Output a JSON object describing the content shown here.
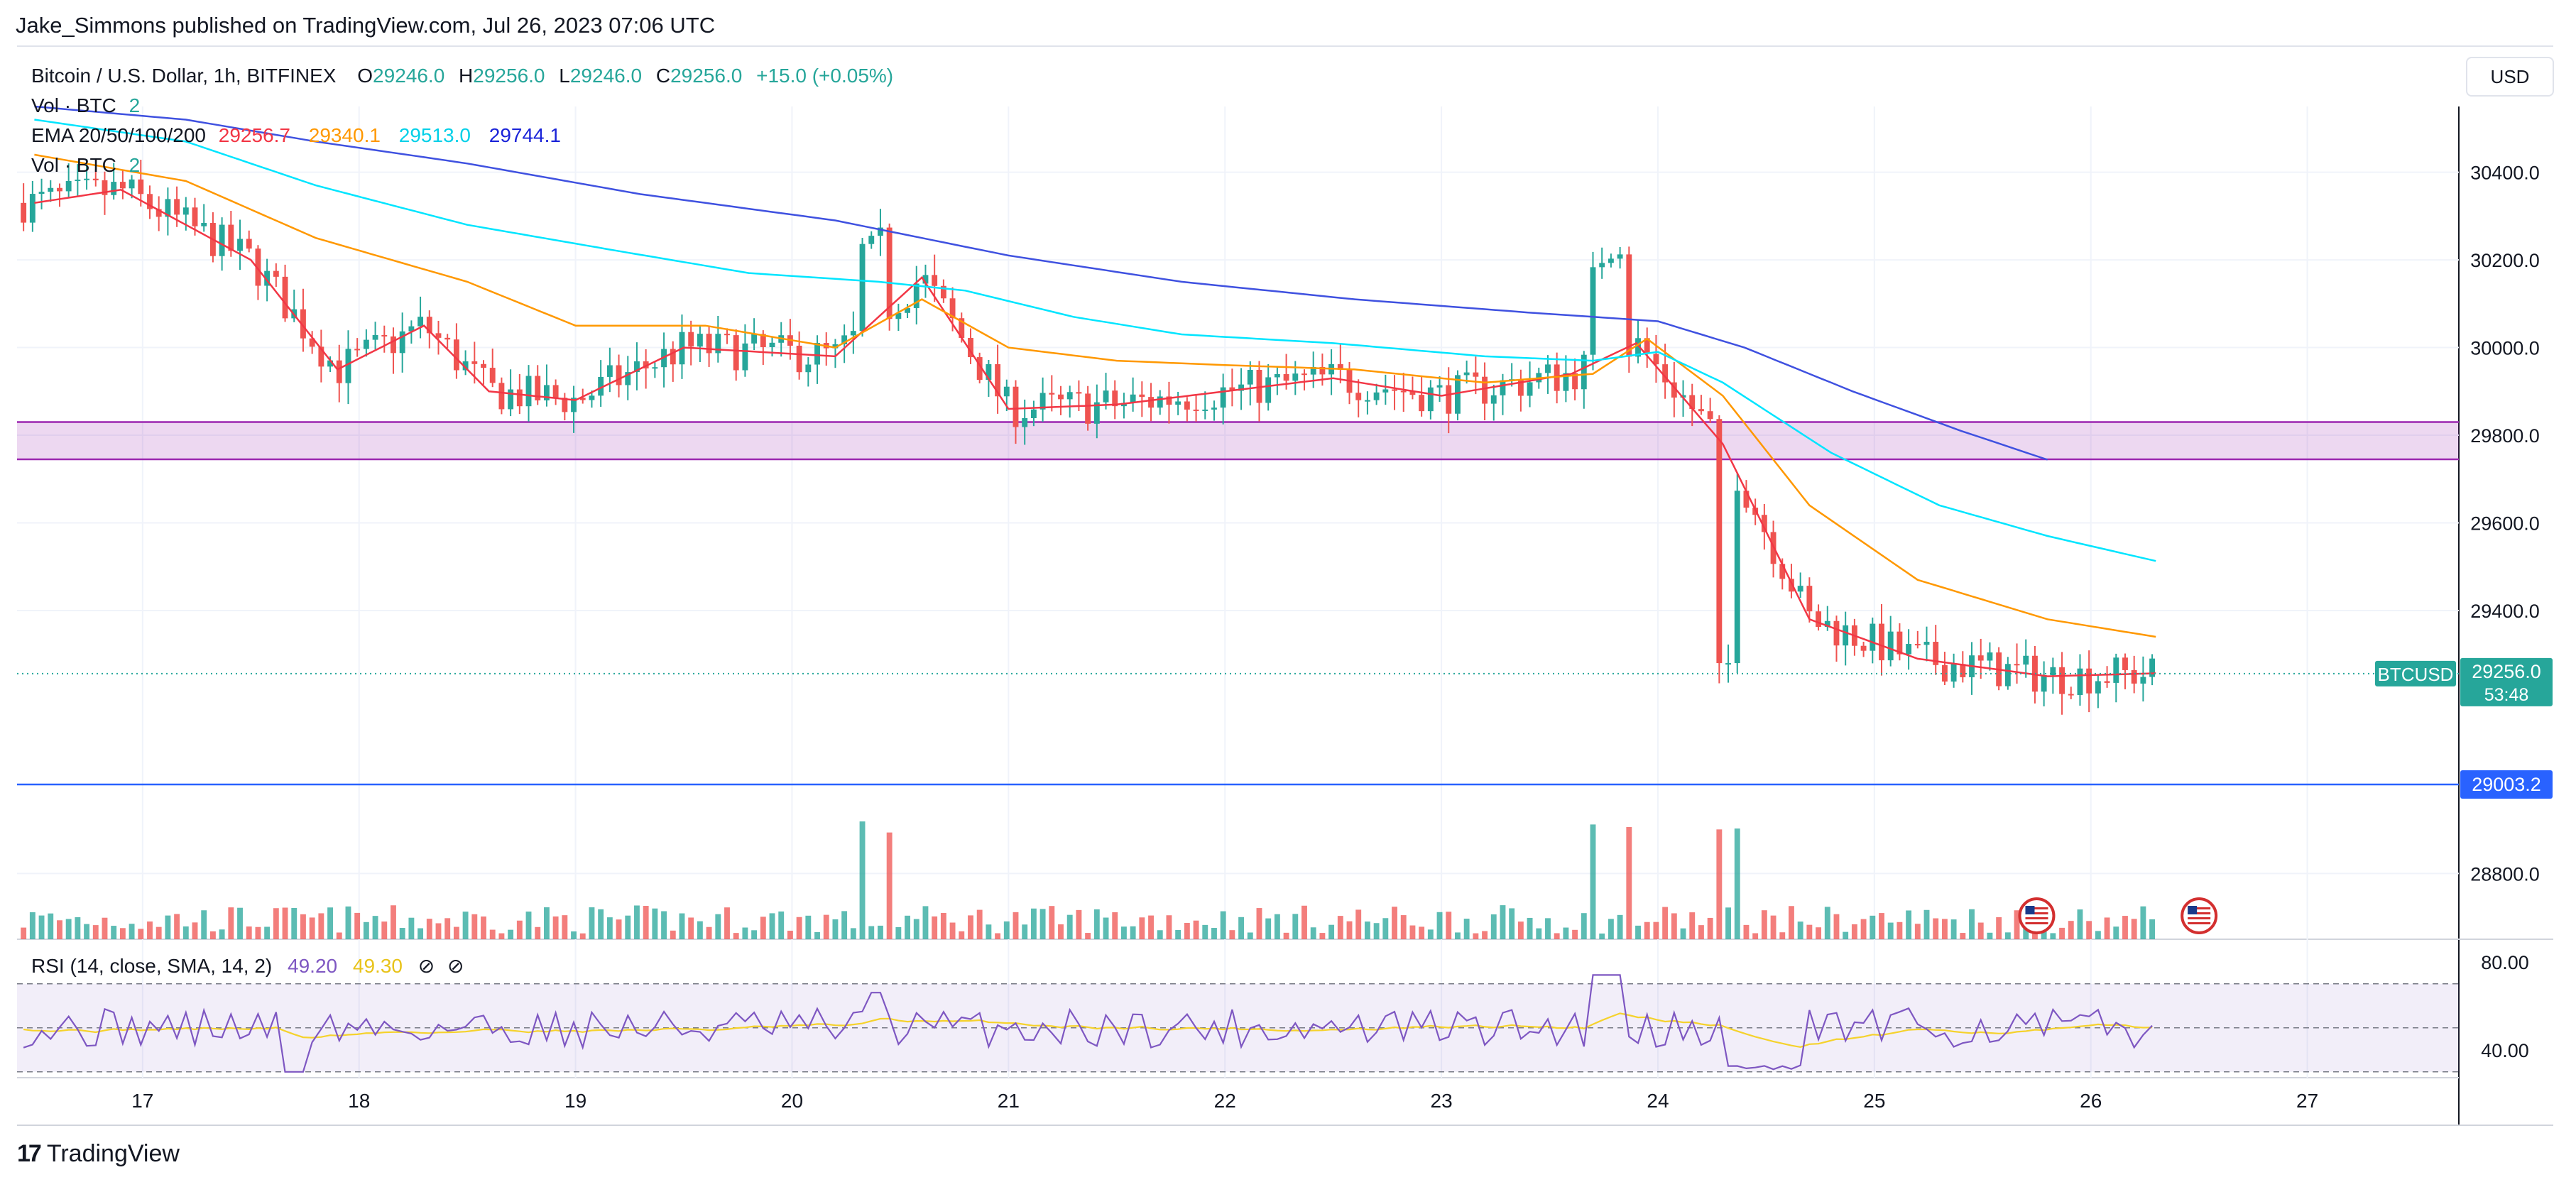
{
  "publisher": "Jake_Simmons published on TradingView.com, Jul 26, 2023 07:06 UTC",
  "legend": {
    "symbol": "Bitcoin / U.S. Dollar, 1h, BITFINEX",
    "ohlc": {
      "o": "29246.0",
      "h": "29256.0",
      "l": "29246.0",
      "c": "29256.0",
      "change": "+15.0 (+0.05%)"
    },
    "vol_label": "Vol · BTC",
    "vol_value": "2",
    "ema_label": "EMA 20/50/100/200",
    "ema_values": [
      "29256.7",
      "29340.1",
      "29513.0",
      "29744.1"
    ],
    "vol_label2": "Vol · BTC",
    "vol_value2": "2"
  },
  "currency": "USD",
  "brand": "TradingView",
  "chart_data": {
    "type": "candlestick",
    "symbol": "BTCUSD",
    "timeframe": "1h",
    "exchange": "BITFINEX",
    "price_axis": {
      "ticks": [
        "30400.0",
        "30200.0",
        "30000.0",
        "29800.0",
        "29600.0",
        "29400.0",
        "28800.0"
      ],
      "range": [
        28650,
        30550
      ]
    },
    "time_axis": {
      "labels": [
        "17",
        "18",
        "19",
        "20",
        "21",
        "22",
        "23",
        "24",
        "25",
        "26",
        "27"
      ]
    },
    "current_price": {
      "symbol_label": "BTCUSD",
      "price": "29256.0",
      "countdown": "53:48",
      "value": 29256
    },
    "horizontal_line": {
      "label": "29003.2",
      "value": 29003.2
    },
    "support_zone": [
      29745,
      29830
    ],
    "ema_series": [
      {
        "color": "#f23645",
        "anchors": [
          [
            16.5,
            30330
          ],
          [
            16.9,
            30360
          ],
          [
            17.5,
            30200
          ],
          [
            17.9,
            29950
          ],
          [
            18.3,
            30050
          ],
          [
            18.6,
            29900
          ],
          [
            19.0,
            29880
          ],
          [
            19.5,
            30000
          ],
          [
            20.2,
            29980
          ],
          [
            20.6,
            30160
          ],
          [
            21.0,
            29860
          ],
          [
            21.5,
            29870
          ],
          [
            22.0,
            29900
          ],
          [
            22.5,
            29930
          ],
          [
            23.0,
            29890
          ],
          [
            23.6,
            29940
          ],
          [
            23.9,
            30010
          ],
          [
            24.3,
            29780
          ],
          [
            24.7,
            29380
          ],
          [
            25.2,
            29290
          ],
          [
            25.8,
            29250
          ],
          [
            26.3,
            29256.7
          ]
        ]
      },
      {
        "color": "#ff9800",
        "anchors": [
          [
            16.5,
            30440
          ],
          [
            17.2,
            30380
          ],
          [
            17.8,
            30250
          ],
          [
            18.5,
            30150
          ],
          [
            19.0,
            30050
          ],
          [
            19.6,
            30050
          ],
          [
            20.2,
            30000
          ],
          [
            20.6,
            30110
          ],
          [
            21.0,
            30000
          ],
          [
            21.5,
            29970
          ],
          [
            22.0,
            29960
          ],
          [
            22.6,
            29950
          ],
          [
            23.2,
            29920
          ],
          [
            23.7,
            29940
          ],
          [
            23.95,
            30020
          ],
          [
            24.3,
            29890
          ],
          [
            24.7,
            29640
          ],
          [
            25.2,
            29470
          ],
          [
            25.8,
            29380
          ],
          [
            26.3,
            29340.1
          ]
        ]
      },
      {
        "color": "#00e5ff",
        "anchors": [
          [
            16.5,
            30520
          ],
          [
            17.2,
            30470
          ],
          [
            17.8,
            30370
          ],
          [
            18.5,
            30280
          ],
          [
            19.2,
            30220
          ],
          [
            19.8,
            30170
          ],
          [
            20.4,
            30150
          ],
          [
            20.8,
            30130
          ],
          [
            21.3,
            30070
          ],
          [
            21.8,
            30030
          ],
          [
            22.5,
            30010
          ],
          [
            23.2,
            29980
          ],
          [
            23.7,
            29970
          ],
          [
            24.0,
            29990
          ],
          [
            24.3,
            29920
          ],
          [
            24.8,
            29760
          ],
          [
            25.3,
            29640
          ],
          [
            25.8,
            29570
          ],
          [
            26.3,
            29513.0
          ]
        ]
      },
      {
        "color": "#3f51e0",
        "anchors": [
          [
            16.5,
            30550
          ],
          [
            17.2,
            30520
          ],
          [
            17.8,
            30470
          ],
          [
            18.5,
            30420
          ],
          [
            19.3,
            30350
          ],
          [
            20.2,
            30290
          ],
          [
            21.0,
            30210
          ],
          [
            21.8,
            30150
          ],
          [
            22.6,
            30110
          ],
          [
            23.4,
            30080
          ],
          [
            24.0,
            30060
          ],
          [
            24.4,
            30000
          ],
          [
            24.9,
            29900
          ],
          [
            25.4,
            29810
          ],
          [
            25.8,
            29744.1
          ]
        ]
      }
    ],
    "rsi": {
      "label": "RSI (14, close, SMA, 14, 2)",
      "values": [
        "49.20",
        "49.30"
      ],
      "ticks": [
        "80.00",
        "40.00"
      ],
      "band": [
        30,
        70
      ],
      "mid": 50,
      "range": [
        28,
        88
      ]
    }
  }
}
